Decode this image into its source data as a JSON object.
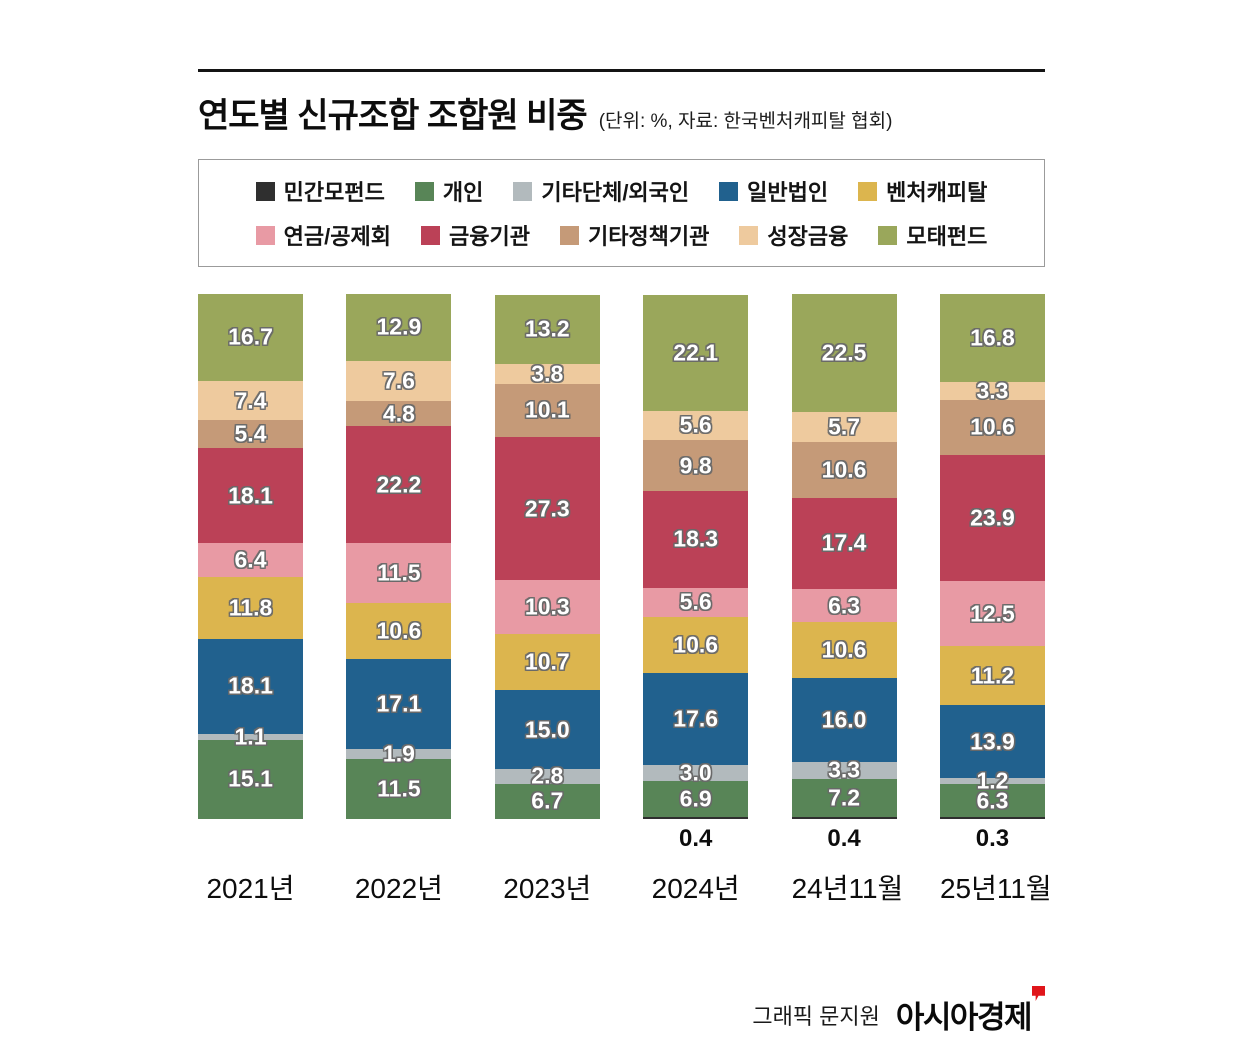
{
  "title": {
    "main": "연도별 신규조합 조합원 비중",
    "unit_note": "(단위: %, 자료: 한국벤처캐피탈 협회)"
  },
  "footer": {
    "credit": "그래픽 문지원",
    "brand": "아시아경제"
  },
  "chart_data": {
    "type": "stacked-bar",
    "unit": "%",
    "title": "연도별 신규조합 조합원 비중",
    "legend_position": "top",
    "categories": [
      "2021년",
      "2022년",
      "2023년",
      "2024년",
      "24년11월",
      "25년11월"
    ],
    "series": [
      {
        "name": "민간모펀드",
        "color": "#2f2f2f",
        "label_position": "below",
        "values": [
          null,
          null,
          null,
          0.4,
          0.4,
          0.3
        ]
      },
      {
        "name": "개인",
        "color": "#588557",
        "values": [
          15.1,
          11.5,
          6.7,
          6.9,
          7.2,
          6.3
        ]
      },
      {
        "name": "기타단체/외국인",
        "color": "#b2babd",
        "values": [
          1.1,
          1.9,
          2.8,
          3.0,
          3.3,
          1.2
        ]
      },
      {
        "name": "일반법인",
        "color": "#21618e",
        "values": [
          18.1,
          17.1,
          15.0,
          17.6,
          16.0,
          13.9
        ]
      },
      {
        "name": "벤처캐피탈",
        "color": "#dcb54e",
        "values": [
          11.8,
          10.6,
          10.7,
          10.6,
          10.6,
          11.2
        ]
      },
      {
        "name": "연금/공제회",
        "color": "#e89aa4",
        "values": [
          6.4,
          11.5,
          10.3,
          5.6,
          6.3,
          12.5
        ]
      },
      {
        "name": "금융기관",
        "color": "#bb4157",
        "values": [
          18.1,
          22.2,
          27.3,
          18.3,
          17.4,
          23.9
        ]
      },
      {
        "name": "기타정책기관",
        "color": "#c59a78",
        "values": [
          5.4,
          4.8,
          10.1,
          9.8,
          10.6,
          10.6
        ]
      },
      {
        "name": "성장금융",
        "color": "#eeca9e",
        "values": [
          7.4,
          7.6,
          3.8,
          5.6,
          5.7,
          3.3
        ]
      },
      {
        "name": "모태펀드",
        "color": "#9aa75b",
        "values": [
          16.7,
          12.9,
          13.2,
          22.1,
          22.5,
          16.8
        ]
      }
    ]
  }
}
